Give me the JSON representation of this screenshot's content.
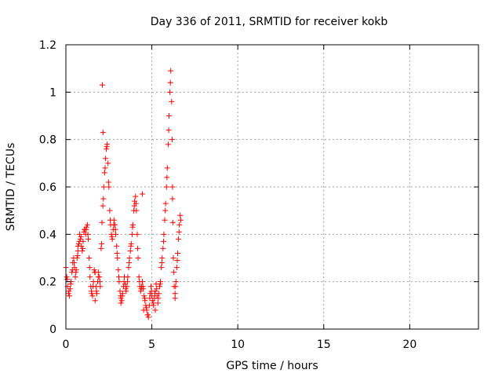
{
  "chart_data": {
    "type": "scatter",
    "title": "Day 336 of 2011, SRMTID for receiver kokb",
    "xlabel": "GPS time / hours",
    "ylabel": "SRMTID / TECUs",
    "xlim": [
      0,
      24
    ],
    "ylim": [
      0,
      1.2
    ],
    "xticks": [
      0,
      5,
      10,
      15,
      20
    ],
    "yticks": [
      0,
      0.2,
      0.4,
      0.6,
      0.8,
      1,
      1.2
    ],
    "xtick_labels": [
      "0",
      "5",
      "10",
      "15",
      "20"
    ],
    "ytick_labels": [
      "0",
      "0.2",
      "0.4",
      "0.6",
      "0.8",
      "1",
      "1.2"
    ],
    "grid": true,
    "marker": "+",
    "color": "#ff0000",
    "series": [
      {
        "points": [
          [
            0.0,
            0.26
          ],
          [
            0.05,
            0.22
          ],
          [
            0.1,
            0.18
          ],
          [
            0.15,
            0.15
          ],
          [
            0.2,
            0.14
          ],
          [
            0.25,
            0.17
          ],
          [
            0.3,
            0.2
          ],
          [
            0.35,
            0.24
          ],
          [
            0.4,
            0.28
          ],
          [
            0.45,
            0.3
          ],
          [
            0.5,
            0.26
          ],
          [
            0.55,
            0.22
          ],
          [
            0.6,
            0.25
          ],
          [
            0.65,
            0.3
          ],
          [
            0.7,
            0.33
          ],
          [
            0.75,
            0.36
          ],
          [
            0.8,
            0.4
          ],
          [
            0.85,
            0.38
          ],
          [
            0.9,
            0.35
          ],
          [
            0.95,
            0.33
          ],
          [
            1.0,
            0.37
          ],
          [
            1.05,
            0.41
          ],
          [
            1.1,
            0.42
          ],
          [
            1.15,
            0.4
          ],
          [
            1.2,
            0.43
          ],
          [
            1.25,
            0.44
          ],
          [
            1.3,
            0.38
          ],
          [
            1.35,
            0.3
          ],
          [
            1.4,
            0.22
          ],
          [
            1.45,
            0.18
          ],
          [
            1.5,
            0.15
          ],
          [
            1.55,
            0.14
          ],
          [
            1.6,
            0.2
          ],
          [
            1.65,
            0.25
          ],
          [
            1.7,
            0.24
          ],
          [
            1.75,
            0.18
          ],
          [
            1.8,
            0.15
          ],
          [
            1.85,
            0.2
          ],
          [
            1.9,
            0.24
          ],
          [
            1.95,
            0.22
          ],
          [
            2.0,
            0.18
          ],
          [
            2.05,
            0.34
          ],
          [
            2.1,
            0.45
          ],
          [
            2.15,
            0.52
          ],
          [
            2.2,
            0.6
          ],
          [
            2.25,
            0.66
          ],
          [
            2.3,
            0.72
          ],
          [
            2.35,
            0.76
          ],
          [
            2.4,
            0.78
          ],
          [
            2.45,
            0.7
          ],
          [
            2.5,
            0.6
          ],
          [
            2.55,
            0.5
          ],
          [
            2.6,
            0.44
          ],
          [
            2.65,
            0.4
          ],
          [
            2.7,
            0.38
          ],
          [
            2.75,
            0.42
          ],
          [
            2.8,
            0.46
          ],
          [
            2.85,
            0.44
          ],
          [
            2.9,
            0.4
          ],
          [
            2.95,
            0.35
          ],
          [
            3.0,
            0.3
          ],
          [
            3.05,
            0.25
          ],
          [
            3.1,
            0.2
          ],
          [
            3.15,
            0.16
          ],
          [
            3.2,
            0.13
          ],
          [
            3.25,
            0.12
          ],
          [
            3.3,
            0.15
          ],
          [
            3.35,
            0.18
          ],
          [
            3.4,
            0.22
          ],
          [
            3.45,
            0.19
          ],
          [
            3.5,
            0.16
          ],
          [
            3.55,
            0.18
          ],
          [
            3.6,
            0.22
          ],
          [
            3.65,
            0.26
          ],
          [
            3.7,
            0.3
          ],
          [
            3.75,
            0.33
          ],
          [
            3.8,
            0.36
          ],
          [
            3.85,
            0.4
          ],
          [
            3.9,
            0.44
          ],
          [
            3.95,
            0.5
          ],
          [
            4.0,
            0.54
          ],
          [
            4.05,
            0.56
          ],
          [
            4.1,
            0.5
          ],
          [
            4.15,
            0.4
          ],
          [
            4.2,
            0.3
          ],
          [
            4.25,
            0.22
          ],
          [
            4.3,
            0.18
          ],
          [
            4.35,
            0.16
          ],
          [
            4.4,
            0.18
          ],
          [
            4.45,
            0.2
          ],
          [
            4.5,
            0.17
          ],
          [
            4.55,
            0.14
          ],
          [
            4.6,
            0.12
          ],
          [
            4.65,
            0.1
          ],
          [
            4.7,
            0.08
          ],
          [
            4.75,
            0.06
          ],
          [
            4.8,
            0.05
          ],
          [
            4.85,
            0.1
          ],
          [
            4.9,
            0.15
          ],
          [
            4.95,
            0.18
          ],
          [
            5.0,
            0.14
          ],
          [
            5.05,
            0.12
          ],
          [
            5.1,
            0.1
          ],
          [
            5.15,
            0.13
          ],
          [
            5.2,
            0.16
          ],
          [
            5.25,
            0.19
          ],
          [
            5.3,
            0.14
          ],
          [
            5.35,
            0.11
          ],
          [
            5.4,
            0.15
          ],
          [
            5.45,
            0.18
          ],
          [
            5.5,
            0.2
          ],
          [
            5.55,
            0.26
          ],
          [
            5.6,
            0.3
          ],
          [
            5.65,
            0.34
          ],
          [
            5.7,
            0.4
          ],
          [
            5.75,
            0.46
          ],
          [
            5.8,
            0.53
          ],
          [
            5.85,
            0.6
          ],
          [
            5.9,
            0.68
          ],
          [
            5.95,
            0.78
          ],
          [
            6.0,
            0.9
          ],
          [
            6.05,
            1.0
          ],
          [
            6.1,
            1.09
          ],
          [
            6.15,
            0.96
          ],
          [
            6.2,
            0.6
          ],
          [
            6.25,
            0.3
          ],
          [
            6.3,
            0.18
          ],
          [
            6.35,
            0.15
          ],
          [
            6.4,
            0.2
          ],
          [
            6.45,
            0.26
          ],
          [
            6.5,
            0.32
          ],
          [
            6.55,
            0.38
          ],
          [
            6.6,
            0.44
          ],
          [
            6.65,
            0.48
          ],
          [
            0.08,
            0.21
          ],
          [
            0.18,
            0.16
          ],
          [
            0.28,
            0.19
          ],
          [
            0.38,
            0.25
          ],
          [
            0.48,
            0.28
          ],
          [
            0.58,
            0.24
          ],
          [
            0.68,
            0.31
          ],
          [
            0.78,
            0.37
          ],
          [
            0.88,
            0.39
          ],
          [
            0.98,
            0.34
          ],
          [
            1.08,
            0.42
          ],
          [
            1.18,
            0.42
          ],
          [
            1.28,
            0.4
          ],
          [
            1.38,
            0.26
          ],
          [
            1.48,
            0.16
          ],
          [
            1.58,
            0.18
          ],
          [
            1.68,
            0.24
          ],
          [
            1.78,
            0.16
          ],
          [
            1.88,
            0.22
          ],
          [
            1.98,
            0.2
          ],
          [
            2.08,
            0.36
          ],
          [
            2.18,
            0.55
          ],
          [
            2.28,
            0.68
          ],
          [
            2.38,
            0.77
          ],
          [
            2.48,
            0.62
          ],
          [
            2.58,
            0.46
          ],
          [
            2.68,
            0.39
          ],
          [
            2.78,
            0.44
          ],
          [
            2.88,
            0.42
          ],
          [
            2.98,
            0.32
          ],
          [
            3.08,
            0.22
          ],
          [
            3.18,
            0.14
          ],
          [
            3.28,
            0.14
          ],
          [
            3.38,
            0.2
          ],
          [
            3.48,
            0.17
          ],
          [
            3.58,
            0.2
          ],
          [
            3.68,
            0.28
          ],
          [
            3.78,
            0.35
          ],
          [
            3.88,
            0.43
          ],
          [
            3.98,
            0.52
          ],
          [
            4.08,
            0.53
          ],
          [
            4.18,
            0.34
          ],
          [
            4.28,
            0.2
          ],
          [
            4.38,
            0.17
          ],
          [
            4.48,
            0.18
          ],
          [
            4.58,
            0.13
          ],
          [
            4.68,
            0.09
          ],
          [
            4.78,
            0.06
          ],
          [
            4.88,
            0.13
          ],
          [
            4.98,
            0.16
          ],
          [
            5.08,
            0.11
          ],
          [
            5.18,
            0.15
          ],
          [
            5.28,
            0.17
          ],
          [
            5.38,
            0.13
          ],
          [
            5.48,
            0.19
          ],
          [
            5.58,
            0.28
          ],
          [
            5.68,
            0.37
          ],
          [
            5.78,
            0.5
          ],
          [
            5.88,
            0.64
          ],
          [
            5.98,
            0.84
          ],
          [
            6.08,
            1.04
          ],
          [
            6.18,
            0.8
          ],
          [
            6.28,
            0.24
          ],
          [
            6.38,
            0.18
          ],
          [
            6.48,
            0.29
          ],
          [
            6.58,
            0.41
          ],
          [
            6.68,
            0.46
          ],
          [
            2.12,
            1.03
          ],
          [
            2.16,
            0.83
          ],
          [
            4.45,
            0.57
          ],
          [
            4.52,
            0.08
          ],
          [
            0.7,
            0.35
          ],
          [
            1.7,
            0.12
          ],
          [
            3.2,
            0.11
          ],
          [
            5.2,
            0.08
          ],
          [
            6.35,
            0.13
          ],
          [
            6.2,
            0.55
          ],
          [
            6.22,
            0.45
          ]
        ]
      }
    ]
  }
}
